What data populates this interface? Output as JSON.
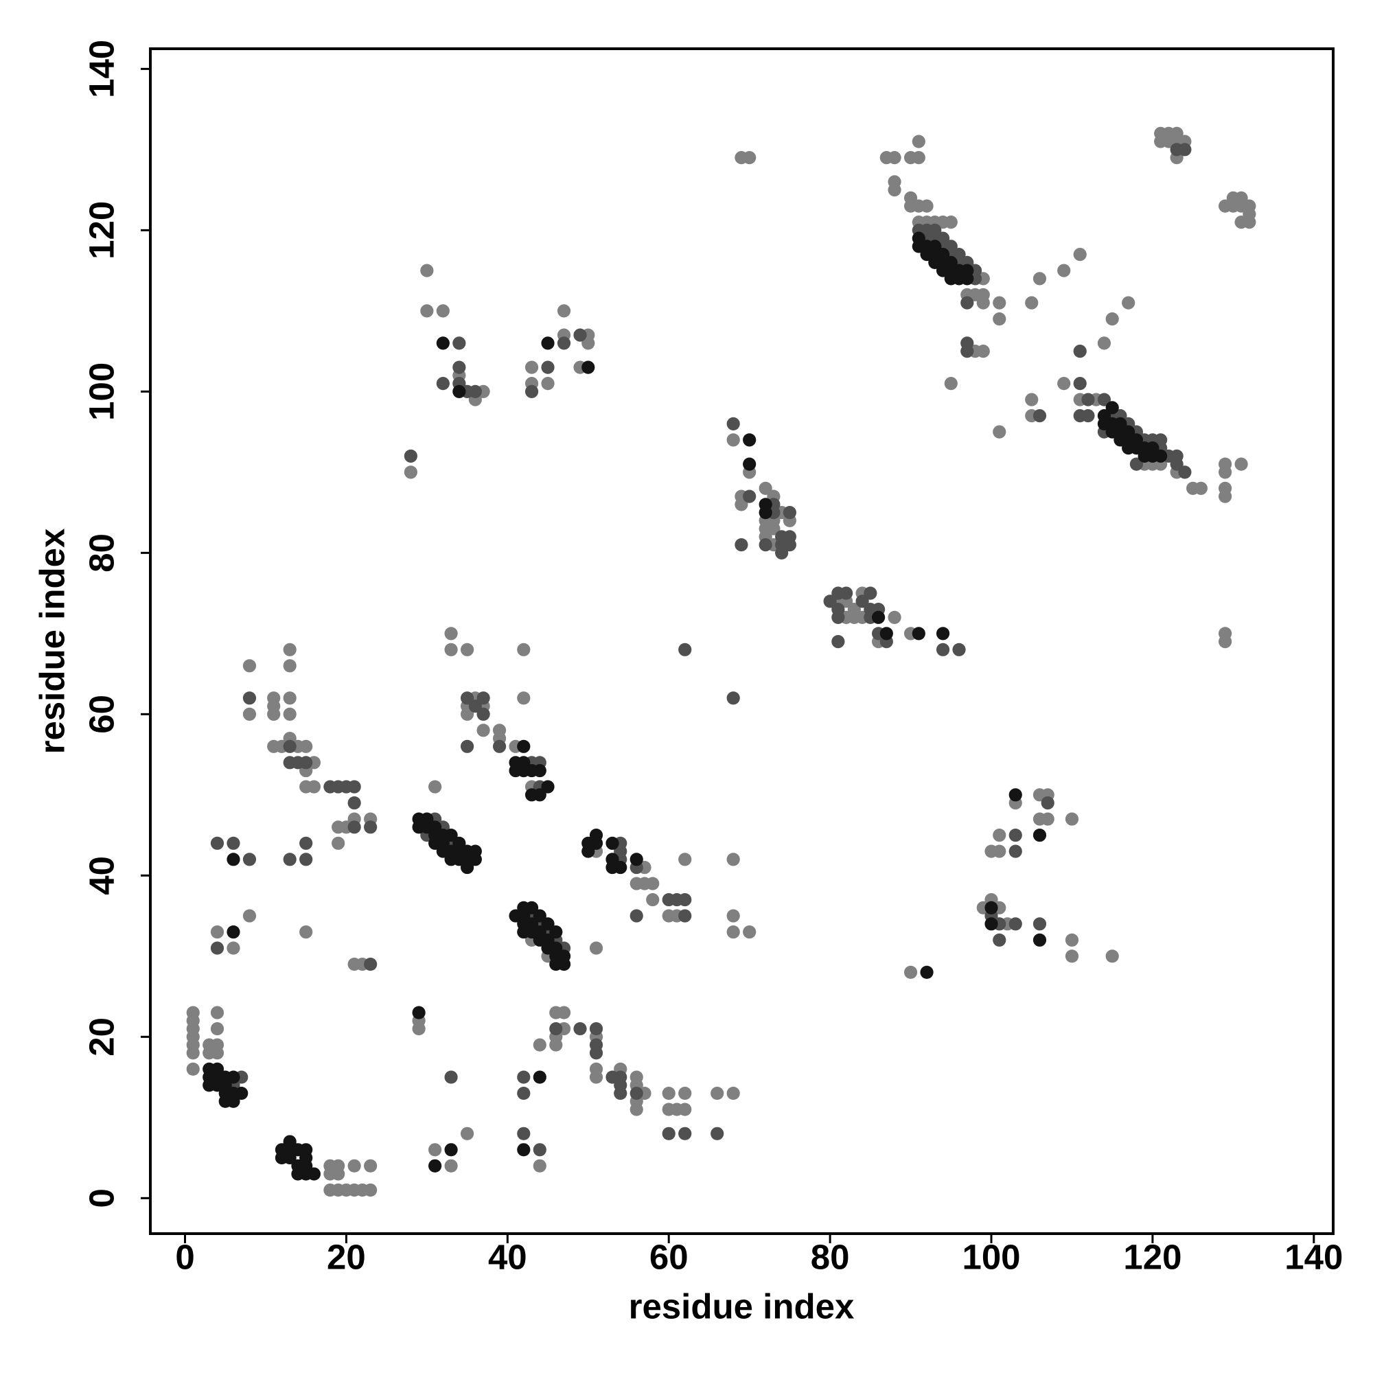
{
  "chart_data": {
    "type": "scatter",
    "xlabel": "residue index",
    "ylabel": "residue index",
    "xlim": [
      -4.3,
      142.4
    ],
    "ylim": [
      -4.4,
      142.5
    ],
    "xticks": [
      0,
      20,
      40,
      60,
      80,
      100,
      120,
      140
    ],
    "yticks": [
      0,
      20,
      40,
      60,
      80,
      100,
      120,
      140
    ],
    "grid": false,
    "groups": [
      {
        "color": "#808080",
        "x": [
          1,
          1,
          1,
          1,
          1,
          1,
          1,
          3,
          3,
          4,
          4,
          4,
          4,
          18,
          18,
          18,
          19,
          19,
          19,
          20,
          21,
          21,
          22,
          23,
          23,
          4,
          6,
          8,
          8,
          8,
          11,
          11,
          11,
          11,
          12,
          13,
          13,
          13,
          13,
          13,
          14,
          15,
          15,
          15,
          16,
          16,
          15,
          19,
          19,
          20,
          21,
          23,
          21,
          22,
          28,
          30,
          30,
          32,
          34,
          36,
          37,
          43,
          43,
          45,
          47,
          47,
          49,
          50,
          50,
          31,
          33,
          33,
          35,
          35,
          35,
          36,
          37,
          37,
          39,
          39,
          42,
          42,
          41,
          43,
          43,
          45,
          56,
          57,
          57,
          58,
          58,
          60,
          61,
          62,
          51,
          51,
          29,
          29,
          31,
          33,
          35,
          44,
          44,
          46,
          46,
          46,
          47,
          47,
          51,
          51,
          51,
          54,
          56,
          56,
          56,
          56,
          57,
          60,
          60,
          61,
          62,
          62,
          66,
          68,
          68,
          68,
          68,
          70,
          69,
          70,
          68,
          70,
          69,
          69,
          72,
          72,
          72,
          72,
          73,
          73,
          73,
          73,
          74,
          75,
          81,
          82,
          82,
          83,
          83,
          84,
          84,
          86,
          88,
          90,
          90,
          87,
          88,
          88,
          88,
          90,
          91,
          91,
          90,
          90,
          91,
          92,
          91,
          92,
          93,
          94,
          95,
          97,
          98,
          99,
          99,
          99,
          98,
          99,
          95,
          101,
          101,
          100,
          101,
          102,
          99,
          100,
          101,
          101,
          103,
          106,
          106,
          107,
          107,
          110,
          110,
          110,
          115,
          101,
          105,
          106,
          109,
          111,
          105,
          105,
          109,
          111,
          113,
          114,
          115,
          117,
          119,
          120,
          121,
          123,
          125,
          126,
          129,
          129,
          129,
          129,
          131,
          129,
          129,
          121,
          122,
          123,
          121,
          122,
          123,
          124,
          123,
          129,
          130,
          131,
          131,
          132,
          132,
          131,
          132,
          130
        ],
        "y": [
          23,
          22,
          21,
          20,
          19,
          18,
          16,
          19,
          18,
          23,
          21,
          19,
          18,
          4,
          3,
          1,
          4,
          3,
          1,
          1,
          4,
          1,
          1,
          4,
          1,
          33,
          31,
          35,
          66,
          60,
          62,
          61,
          60,
          56,
          56,
          68,
          66,
          62,
          60,
          57,
          56,
          56,
          53,
          51,
          54,
          51,
          33,
          46,
          44,
          46,
          47,
          47,
          29,
          29,
          90,
          115,
          110,
          110,
          102,
          99,
          100,
          103,
          101,
          101,
          110,
          107,
          103,
          107,
          106,
          51,
          70,
          68,
          68,
          61,
          60,
          62,
          61,
          58,
          58,
          57,
          68,
          62,
          56,
          51,
          32,
          30,
          39,
          41,
          39,
          39,
          37,
          35,
          35,
          42,
          43,
          31,
          22,
          21,
          6,
          4,
          8,
          19,
          4,
          23,
          20,
          19,
          23,
          21,
          20,
          16,
          15,
          16,
          15,
          14,
          12,
          11,
          13,
          13,
          11,
          11,
          13,
          11,
          13,
          13,
          42,
          35,
          33,
          33,
          129,
          129,
          94,
          90,
          87,
          86,
          88,
          84,
          83,
          82,
          87,
          84,
          83,
          81,
          85,
          84,
          74,
          74,
          72,
          73,
          72,
          75,
          72,
          69,
          72,
          70,
          28,
          129,
          129,
          126,
          125,
          129,
          129,
          131,
          124,
          123,
          123,
          123,
          121,
          121,
          121,
          121,
          121,
          112,
          112,
          112,
          114,
          111,
          105,
          105,
          101,
          111,
          109,
          37,
          36,
          34,
          36,
          43,
          45,
          43,
          49,
          50,
          47,
          50,
          47,
          47,
          32,
          30,
          30,
          95,
          111,
          114,
          115,
          117,
          99,
          97,
          101,
          99,
          99,
          106,
          109,
          111,
          91,
          91,
          91,
          90,
          88,
          88,
          91,
          90,
          88,
          87,
          91,
          70,
          69,
          132,
          132,
          132,
          131,
          131,
          131,
          131,
          129,
          123,
          124,
          124,
          123,
          123,
          122,
          121,
          121,
          123
        ]
      },
      {
        "color": "#505050",
        "x": [
          6,
          7,
          4,
          4,
          6,
          8,
          8,
          13,
          13,
          14,
          15,
          13,
          15,
          15,
          18,
          19,
          20,
          21,
          21,
          21,
          23,
          23,
          28,
          32,
          34,
          34,
          34,
          35,
          36,
          43,
          45,
          47,
          49,
          30,
          31,
          32,
          33,
          35,
          36,
          37,
          37,
          39,
          35,
          43,
          44,
          44,
          43,
          44,
          45,
          46,
          47,
          54,
          54,
          54,
          56,
          60,
          61,
          62,
          62,
          56,
          33,
          42,
          42,
          42,
          44,
          46,
          49,
          51,
          51,
          51,
          53,
          54,
          54,
          54,
          56,
          60,
          62,
          66,
          62,
          68,
          68,
          70,
          69,
          72,
          73,
          73,
          74,
          74,
          74,
          75,
          75,
          75,
          80,
          81,
          81,
          81,
          81,
          82,
          84,
          85,
          85,
          85,
          86,
          86,
          87,
          94,
          96,
          91,
          92,
          92,
          93,
          93,
          94,
          94,
          95,
          95,
          96,
          96,
          97,
          98,
          98,
          97,
          97,
          97,
          100,
          101,
          101,
          103,
          106,
          103,
          103,
          107,
          106,
          111,
          111,
          111,
          112,
          112,
          114,
          115,
          116,
          117,
          118,
          119,
          120,
          121,
          121,
          118,
          122,
          123,
          123,
          124,
          114,
          123,
          124
        ],
        "y": [
          14,
          15,
          31,
          44,
          44,
          42,
          62,
          56,
          54,
          54,
          54,
          42,
          44,
          42,
          51,
          51,
          51,
          51,
          49,
          46,
          46,
          29,
          92,
          101,
          106,
          103,
          101,
          100,
          100,
          100,
          103,
          106,
          107,
          45,
          47,
          46,
          44,
          62,
          61,
          62,
          60,
          56,
          56,
          54,
          54,
          51,
          35,
          34,
          33,
          32,
          31,
          44,
          43,
          42,
          41,
          37,
          37,
          37,
          35,
          35,
          15,
          15,
          13,
          8,
          6,
          21,
          21,
          21,
          19,
          18,
          15,
          15,
          14,
          13,
          13,
          8,
          8,
          8,
          68,
          62,
          96,
          87,
          81,
          81,
          86,
          85,
          82,
          81,
          80,
          85,
          82,
          81,
          74,
          75,
          73,
          72,
          69,
          75,
          74,
          75,
          73,
          72,
          73,
          70,
          69,
          68,
          68,
          120,
          120,
          119,
          120,
          119,
          119,
          118,
          118,
          117,
          117,
          116,
          116,
          114,
          115,
          111,
          106,
          105,
          35,
          34,
          32,
          34,
          34,
          45,
          43,
          49,
          97,
          101,
          105,
          97,
          99,
          97,
          99,
          97,
          97,
          96,
          95,
          94,
          94,
          94,
          93,
          91,
          92,
          92,
          91,
          90,
          95,
          130,
          130
        ]
      },
      {
        "color": "#141414",
        "x": [
          3,
          3,
          3,
          4,
          4,
          5,
          5,
          5,
          6,
          6,
          6,
          5,
          7,
          4,
          12,
          12,
          13,
          13,
          13,
          14,
          14,
          14,
          15,
          15,
          15,
          16,
          15,
          6,
          6,
          32,
          34,
          45,
          50,
          29,
          29,
          30,
          30,
          31,
          31,
          31,
          32,
          32,
          32,
          33,
          33,
          33,
          34,
          34,
          34,
          35,
          35,
          35,
          36,
          36,
          41,
          41,
          42,
          42,
          42,
          43,
          43,
          44,
          44,
          45,
          41,
          42,
          42,
          42,
          42,
          43,
          43,
          43,
          44,
          44,
          44,
          45,
          45,
          45,
          46,
          46,
          46,
          47,
          47,
          46,
          50,
          50,
          51,
          51,
          53,
          53,
          53,
          54,
          56,
          29,
          31,
          33,
          42,
          44,
          70,
          70,
          72,
          72,
          86,
          87,
          91,
          94,
          92,
          91,
          91,
          92,
          92,
          93,
          93,
          94,
          94,
          94,
          95,
          95,
          95,
          96,
          96,
          97,
          97,
          93,
          100,
          100,
          103,
          106,
          106,
          114,
          114,
          115,
          115,
          115,
          116,
          116,
          116,
          117,
          117,
          117,
          118,
          118,
          119,
          119,
          120,
          121,
          120
        ],
        "y": [
          16,
          15,
          14,
          15,
          14,
          15,
          14,
          13,
          15,
          13,
          12,
          12,
          13,
          16,
          6,
          5,
          7,
          6,
          5,
          6,
          4,
          3,
          5,
          4,
          3,
          3,
          6,
          33,
          42,
          106,
          100,
          106,
          103,
          47,
          46,
          47,
          46,
          46,
          45,
          44,
          45,
          44,
          43,
          45,
          43,
          42,
          44,
          43,
          42,
          43,
          42,
          41,
          43,
          42,
          54,
          53,
          56,
          54,
          53,
          53,
          50,
          53,
          50,
          51,
          35,
          36,
          35,
          34,
          33,
          36,
          34,
          33,
          35,
          33,
          32,
          34,
          32,
          31,
          33,
          31,
          30,
          30,
          29,
          29,
          44,
          43,
          45,
          44,
          44,
          42,
          41,
          41,
          42,
          23,
          4,
          6,
          6,
          15,
          94,
          91,
          86,
          85,
          72,
          70,
          70,
          70,
          28,
          118,
          119,
          118,
          117,
          117,
          116,
          117,
          116,
          115,
          116,
          115,
          114,
          115,
          114,
          114,
          115,
          118,
          36,
          34,
          50,
          45,
          32,
          97,
          96,
          98,
          96,
          95,
          96,
          95,
          94,
          95,
          94,
          93,
          93,
          94,
          93,
          92,
          92,
          92,
          93
        ]
      }
    ]
  }
}
